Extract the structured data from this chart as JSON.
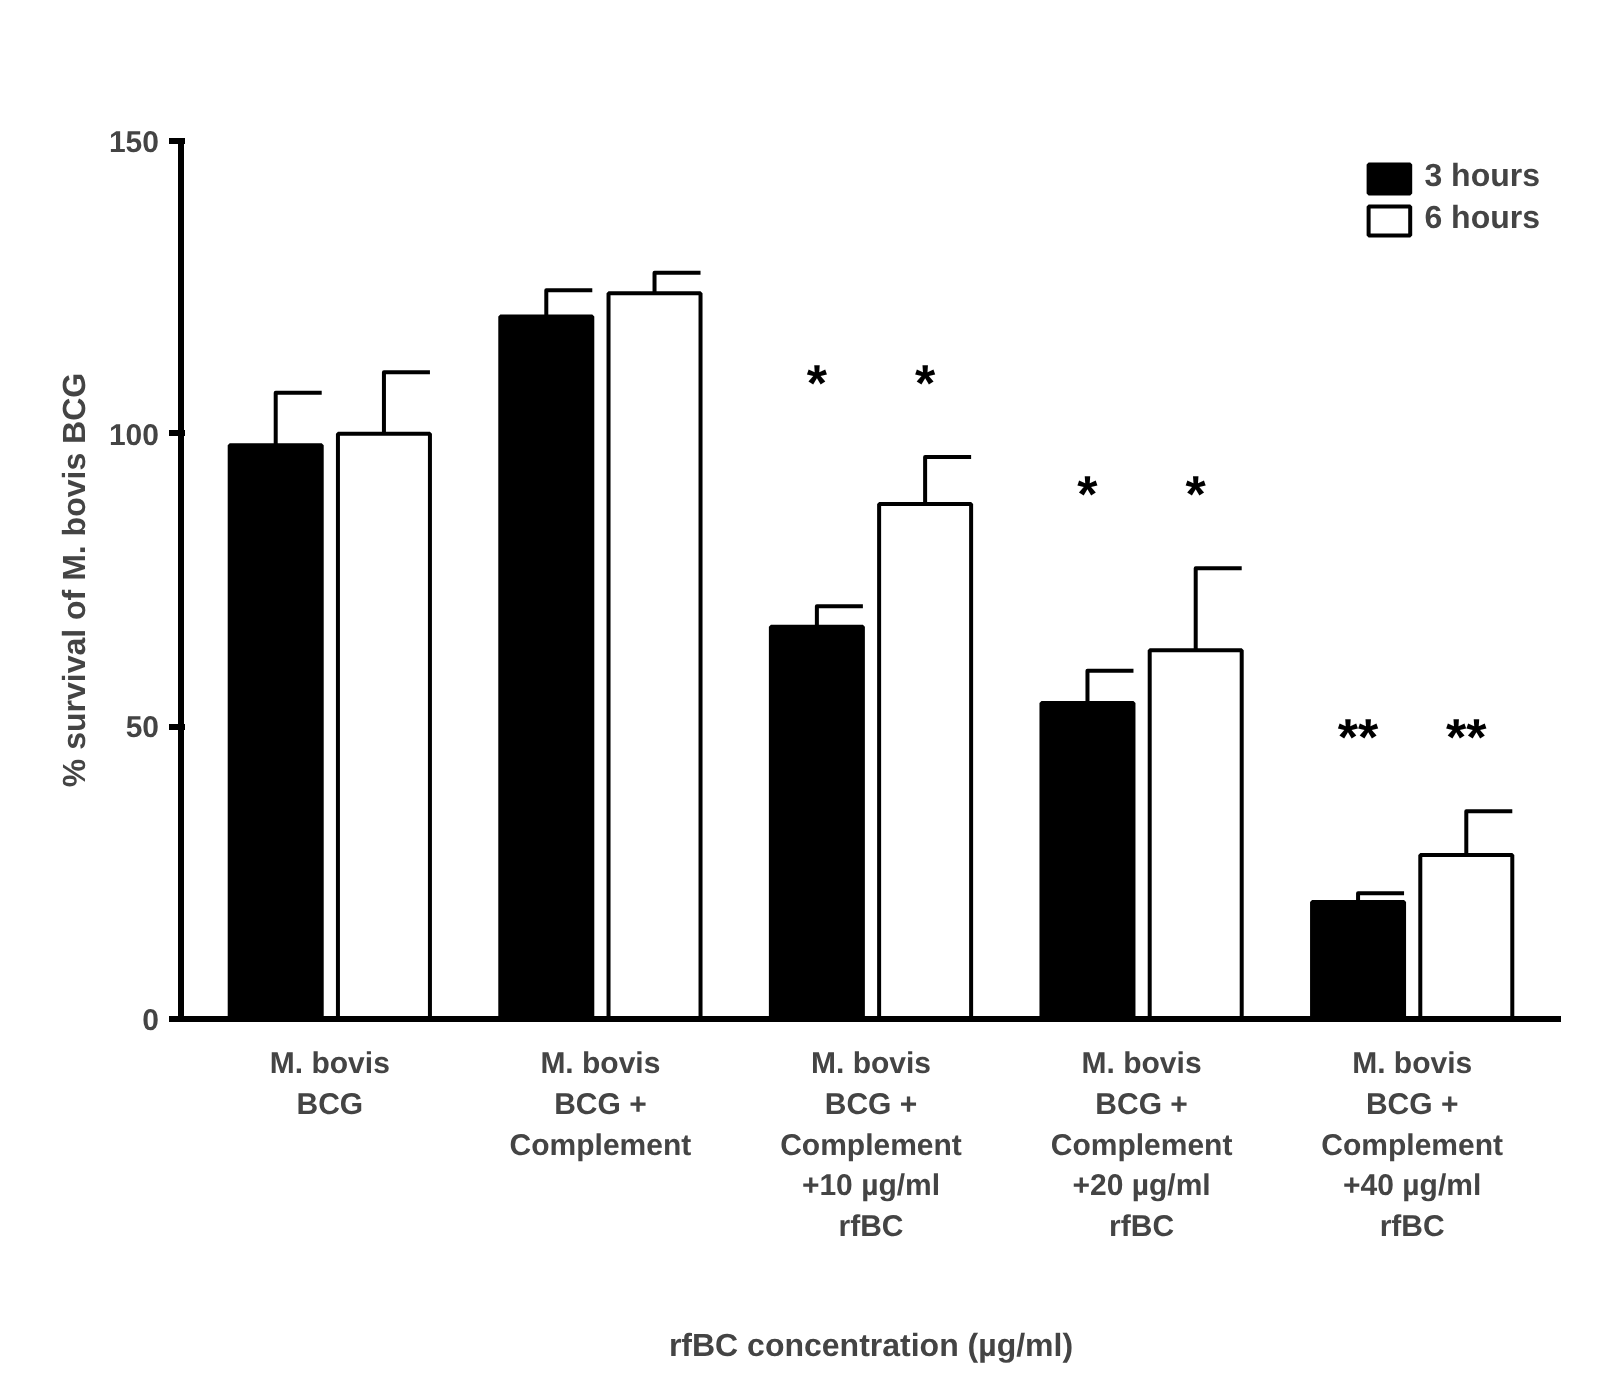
{
  "chart_data": {
    "type": "bar",
    "xlabel": "rfBC concentration (µg/ml)",
    "ylabel": "% survival of M. bovis BCG",
    "categories": [
      "M. bovis\nBCG",
      "M. bovis\nBCG +\nComplement",
      "M. bovis\nBCG +\nComplement\n+10 µg/ml\nrfBC",
      "M. bovis\nBCG +\nComplement\n+20 µg/ml\nrfBC",
      "M. bovis\nBCG +\nComplement\n+40 µg/ml\nrfBC"
    ],
    "series": [
      {
        "name": "3 hours",
        "color": "#000000",
        "values": [
          98,
          120,
          67,
          54,
          20
        ],
        "errors": [
          [
            98,
            107
          ],
          [
            120,
            124.5
          ],
          [
            67,
            70.5
          ],
          [
            54,
            59.5
          ],
          [
            20,
            21.5
          ]
        ]
      },
      {
        "name": "6 hours",
        "color": "#ffffff",
        "values": [
          100,
          124,
          88,
          63,
          28
        ],
        "errors": [
          [
            100,
            110.5
          ],
          [
            124,
            127.5
          ],
          [
            88,
            96
          ],
          [
            63,
            77
          ],
          [
            28,
            35.5
          ]
        ]
      }
    ],
    "ylim": [
      0,
      150
    ],
    "yticks": [
      0,
      50,
      100,
      150
    ],
    "grid": false,
    "legend": "top right",
    "annotations": [
      "*",
      "*",
      "*",
      "*",
      "**",
      "**"
    ]
  }
}
